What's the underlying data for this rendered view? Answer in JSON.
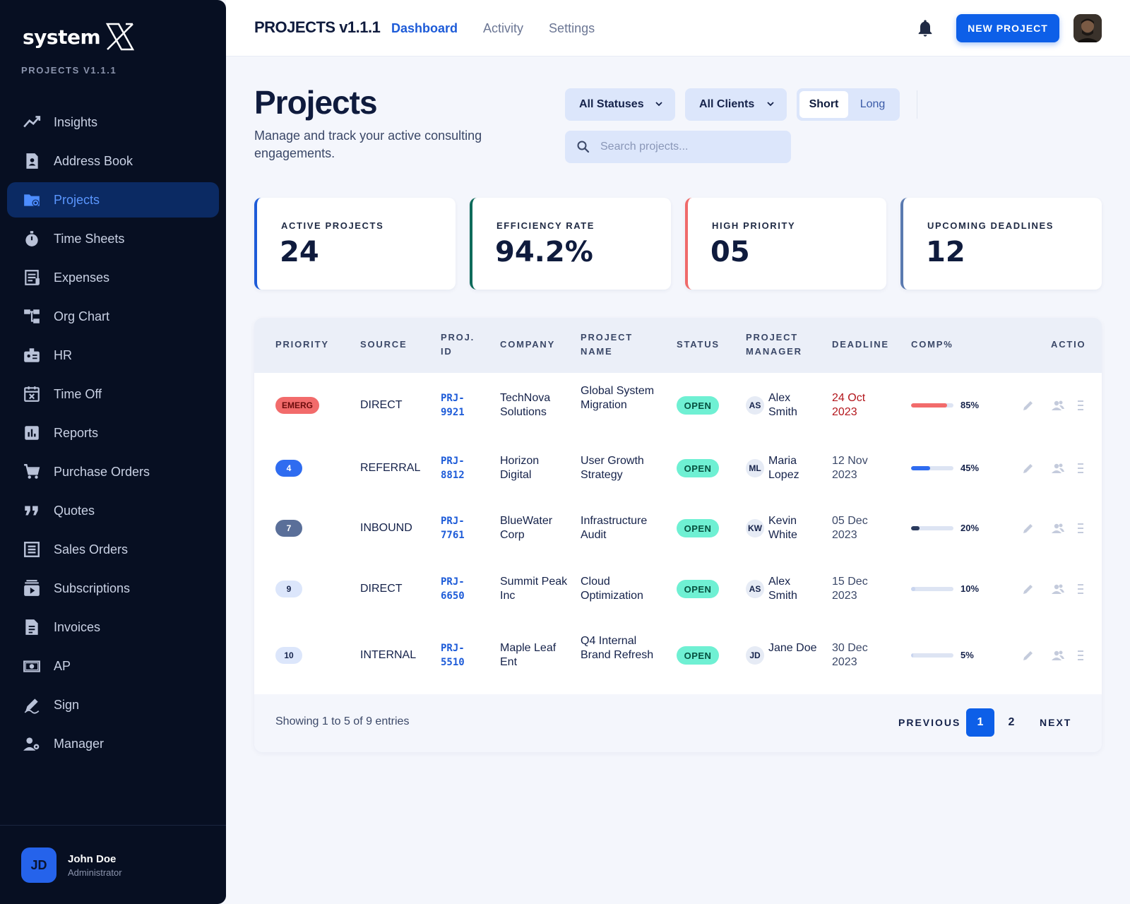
{
  "brand": {
    "logo_text": "system",
    "subtitle": "PROJECTS V1.1.1"
  },
  "sidebar": {
    "items": [
      {
        "label": "Insights",
        "icon": "trend-chart-icon"
      },
      {
        "label": "Address Book",
        "icon": "contact-book-icon"
      },
      {
        "label": "Projects",
        "icon": "folder-gear-icon",
        "active": true
      },
      {
        "label": "Time Sheets",
        "icon": "stopwatch-icon"
      },
      {
        "label": "Expenses",
        "icon": "receipt-icon"
      },
      {
        "label": "Org Chart",
        "icon": "org-chart-icon"
      },
      {
        "label": "HR",
        "icon": "id-badge-icon"
      },
      {
        "label": "Time Off",
        "icon": "calendar-x-icon"
      },
      {
        "label": "Reports",
        "icon": "bar-report-icon"
      },
      {
        "label": "Purchase Orders",
        "icon": "cart-icon"
      },
      {
        "label": "Quotes",
        "icon": "quote-icon"
      },
      {
        "label": "Sales Orders",
        "icon": "list-doc-icon"
      },
      {
        "label": "Subscriptions",
        "icon": "subscriptions-icon"
      },
      {
        "label": "Invoices",
        "icon": "invoice-icon"
      },
      {
        "label": "AP",
        "icon": "cash-icon"
      },
      {
        "label": "Sign",
        "icon": "pen-sign-icon"
      },
      {
        "label": "Manager",
        "icon": "manager-icon"
      }
    ],
    "user": {
      "initials": "JD",
      "name": "John Doe",
      "role": "Administrator"
    }
  },
  "topbar": {
    "title": "PROJECTS v1.1.1",
    "tabs": [
      {
        "label": "Dashboard",
        "active": true
      },
      {
        "label": "Activity"
      },
      {
        "label": "Settings"
      }
    ],
    "new_button": "NEW PROJECT"
  },
  "header": {
    "title": "Projects",
    "description": "Manage and track your active consulting engagements.",
    "status_filter": "All Statuses",
    "client_filter": "All Clients",
    "view_toggle": [
      "Short",
      "Long"
    ],
    "search_placeholder": "Search projects..."
  },
  "stats": [
    {
      "label": "ACTIVE PROJECTS",
      "value": "24",
      "accent": "#1d5bd8"
    },
    {
      "label": "EFFICIENCY RATE",
      "value": "94.2%",
      "accent": "#0f6b5b"
    },
    {
      "label": "HIGH PRIORITY",
      "value": "05",
      "accent": "#ef6a6a"
    },
    {
      "label": "UPCOMING DEADLINES",
      "value": "12",
      "accent": "#5a7ab0"
    }
  ],
  "table": {
    "columns": [
      "PRIORITY",
      "SOURCE",
      "PROJ. ID",
      "COMPANY",
      "PROJECT NAME",
      "STATUS",
      "PROJECT MANAGER",
      "DEADLINE",
      "COMP%",
      "ACTIO"
    ],
    "rows": [
      {
        "priority": "EMERG",
        "priority_bg": "#f26b6b",
        "priority_fg": "#6b0b0b",
        "source": "DIRECT",
        "proj_id": "PRJ-9921",
        "company": "TechNova Solutions",
        "project": "Global System Migration",
        "status": "OPEN",
        "pm_initials": "AS",
        "pm_name": "Alex Smith",
        "deadline": "24 Oct 2023",
        "deadline_color": "#b3161c",
        "comp_pct": 85,
        "comp_label": "85%",
        "bar_color": "#f26b6b"
      },
      {
        "priority": "4",
        "priority_bg": "#2f6cf0",
        "priority_fg": "#ffffff",
        "source": "REFERRAL",
        "proj_id": "PRJ-8812",
        "company": "Horizon Digital",
        "project": "User Growth Strategy",
        "status": "OPEN",
        "pm_initials": "ML",
        "pm_name": "Maria Lopez",
        "deadline": "12 Nov 2023",
        "deadline_color": "#3b4868",
        "comp_pct": 45,
        "comp_label": "45%",
        "bar_color": "#2f6cf0"
      },
      {
        "priority": "7",
        "priority_bg": "#5a6f99",
        "priority_fg": "#ffffff",
        "source": "INBOUND",
        "proj_id": "PRJ-7761",
        "company": "BlueWater Corp",
        "project": "Infrastructure Audit",
        "status": "OPEN",
        "pm_initials": "KW",
        "pm_name": "Kevin White",
        "deadline": "05 Dec 2023",
        "deadline_color": "#3b4868",
        "comp_pct": 20,
        "comp_label": "20%",
        "bar_color": "#2b3b5e"
      },
      {
        "priority": "9",
        "priority_bg": "#dce6fb",
        "priority_fg": "#15224a",
        "source": "DIRECT",
        "proj_id": "PRJ-6650",
        "company": "Summit Peak Inc",
        "project": "Cloud Optimization",
        "status": "OPEN",
        "pm_initials": "AS",
        "pm_name": "Alex Smith",
        "deadline": "15 Dec 2023",
        "deadline_color": "#3b4868",
        "comp_pct": 10,
        "comp_label": "10%",
        "bar_color": "#c9d5ef"
      },
      {
        "priority": "10",
        "priority_bg": "#dce6fb",
        "priority_fg": "#15224a",
        "source": "INTERNAL",
        "proj_id": "PRJ-5510",
        "company": "Maple Leaf Ent",
        "project": "Q4 Internal Brand Refresh",
        "status": "OPEN",
        "pm_initials": "JD",
        "pm_name": "Jane Doe",
        "deadline": "30 Dec 2023",
        "deadline_color": "#3b4868",
        "comp_pct": 5,
        "comp_label": "5%",
        "bar_color": "#c9d5ef"
      }
    ],
    "footer": {
      "info": "Showing 1 to 5 of 9 entries",
      "prev": "PREVIOUS",
      "pages": [
        "1",
        "2"
      ],
      "current_page": "1",
      "next": "NEXT"
    }
  }
}
